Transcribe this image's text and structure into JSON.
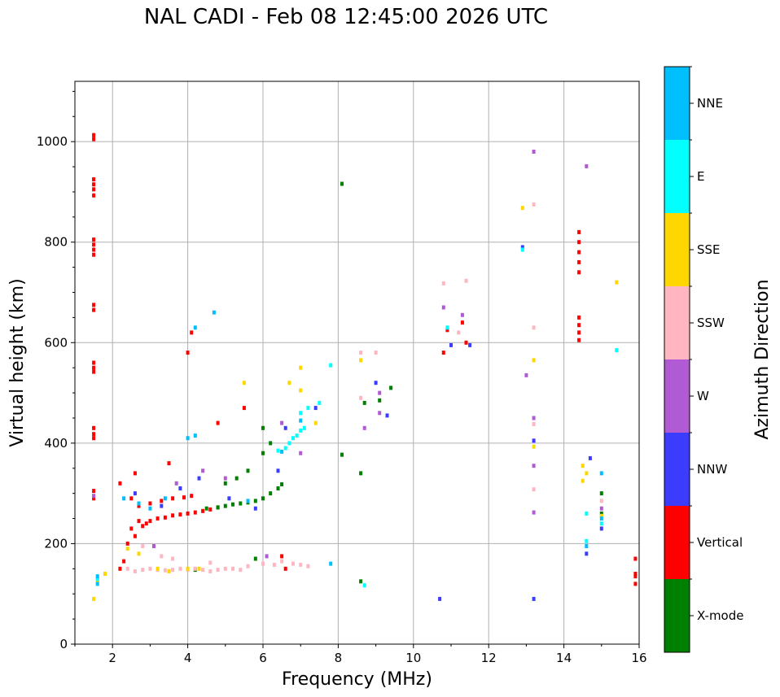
{
  "chart_data": {
    "type": "scatter",
    "title": "NAL CADI - Feb 08 12:45:00 2026 UTC",
    "xlabel": "Frequency (MHz)",
    "ylabel": "Virtual height (km)",
    "xlim": [
      1,
      16
    ],
    "ylim": [
      0,
      1120
    ],
    "x_ticks": [
      2,
      4,
      6,
      8,
      10,
      12,
      14,
      16
    ],
    "y_ticks": [
      0,
      200,
      400,
      600,
      800,
      1000
    ],
    "grid": true,
    "colorbar": {
      "label": "Azimuth Direction",
      "categories": [
        {
          "name": "X-mode",
          "color": "#008000"
        },
        {
          "name": "Vertical",
          "color": "#ff0000"
        },
        {
          "name": "NNW",
          "color": "#3c3cff"
        },
        {
          "name": "W",
          "color": "#b05ad4"
        },
        {
          "name": "SSW",
          "color": "#ffb6c1"
        },
        {
          "name": "SSE",
          "color": "#ffd700"
        },
        {
          "name": "E",
          "color": "#00ffff"
        },
        {
          "name": "NNE",
          "color": "#00bfff"
        }
      ]
    },
    "series": [
      {
        "name": "Vertical",
        "color": "#ff0000",
        "points": [
          [
            1.5,
            1013
          ],
          [
            1.5,
            1005
          ],
          [
            1.5,
            925
          ],
          [
            1.5,
            915
          ],
          [
            1.5,
            905
          ],
          [
            1.5,
            893
          ],
          [
            1.5,
            805
          ],
          [
            1.5,
            795
          ],
          [
            1.5,
            785
          ],
          [
            1.5,
            775
          ],
          [
            1.5,
            675
          ],
          [
            1.5,
            665
          ],
          [
            1.5,
            560
          ],
          [
            1.5,
            550
          ],
          [
            1.5,
            542
          ],
          [
            1.5,
            430
          ],
          [
            1.5,
            418
          ],
          [
            1.5,
            410
          ],
          [
            1.5,
            305
          ],
          [
            1.5,
            290
          ],
          [
            2.2,
            150
          ],
          [
            2.3,
            165
          ],
          [
            2.4,
            200
          ],
          [
            2.5,
            230
          ],
          [
            2.6,
            215
          ],
          [
            2.7,
            245
          ],
          [
            2.8,
            235
          ],
          [
            2.9,
            240
          ],
          [
            3.0,
            245
          ],
          [
            3.2,
            250
          ],
          [
            3.4,
            252
          ],
          [
            3.6,
            256
          ],
          [
            3.8,
            258
          ],
          [
            4.0,
            260
          ],
          [
            4.2,
            262
          ],
          [
            4.4,
            265
          ],
          [
            4.6,
            268
          ],
          [
            4.8,
            272
          ],
          [
            2.5,
            290
          ],
          [
            2.7,
            275
          ],
          [
            3.0,
            280
          ],
          [
            3.3,
            285
          ],
          [
            3.6,
            290
          ],
          [
            3.9,
            292
          ],
          [
            4.1,
            295
          ],
          [
            2.2,
            320
          ],
          [
            2.6,
            340
          ],
          [
            3.5,
            360
          ],
          [
            4.0,
            580
          ],
          [
            4.1,
            620
          ],
          [
            4.8,
            440
          ],
          [
            5.5,
            470
          ],
          [
            6.5,
            175
          ],
          [
            6.6,
            150
          ],
          [
            10.8,
            580
          ],
          [
            10.9,
            625
          ],
          [
            11.4,
            600
          ],
          [
            11.3,
            640
          ],
          [
            14.4,
            740
          ],
          [
            14.4,
            760
          ],
          [
            14.4,
            780
          ],
          [
            14.4,
            800
          ],
          [
            14.4,
            820
          ],
          [
            14.4,
            650
          ],
          [
            14.4,
            635
          ],
          [
            14.4,
            620
          ],
          [
            14.4,
            605
          ],
          [
            15.9,
            170
          ],
          [
            15.9,
            140
          ],
          [
            15.9,
            135
          ],
          [
            15.9,
            120
          ]
        ]
      },
      {
        "name": "X-mode",
        "color": "#008000",
        "points": [
          [
            4.5,
            270
          ],
          [
            4.8,
            272
          ],
          [
            5.0,
            275
          ],
          [
            5.2,
            278
          ],
          [
            5.4,
            280
          ],
          [
            5.6,
            282
          ],
          [
            5.8,
            285
          ],
          [
            6.0,
            290
          ],
          [
            6.2,
            300
          ],
          [
            6.4,
            310
          ],
          [
            6.5,
            318
          ],
          [
            5.0,
            320
          ],
          [
            5.3,
            330
          ],
          [
            5.6,
            345
          ],
          [
            6.0,
            380
          ],
          [
            6.2,
            400
          ],
          [
            6.0,
            430
          ],
          [
            4.2,
            148
          ],
          [
            5.8,
            170
          ],
          [
            8.1,
            916
          ],
          [
            8.1,
            377
          ],
          [
            8.6,
            340
          ],
          [
            8.6,
            125
          ],
          [
            8.7,
            480
          ],
          [
            9.1,
            485
          ],
          [
            9.4,
            510
          ],
          [
            15.0,
            300
          ],
          [
            15.0,
            260
          ]
        ]
      },
      {
        "name": "NNW",
        "color": "#3c3cff",
        "points": [
          [
            2.6,
            300
          ],
          [
            3.3,
            275
          ],
          [
            3.8,
            310
          ],
          [
            4.3,
            330
          ],
          [
            5.1,
            290
          ],
          [
            5.8,
            270
          ],
          [
            6.4,
            345
          ],
          [
            6.6,
            430
          ],
          [
            7.4,
            470
          ],
          [
            9.0,
            520
          ],
          [
            9.3,
            455
          ],
          [
            10.7,
            90
          ],
          [
            11.0,
            595
          ],
          [
            11.5,
            595
          ],
          [
            12.9,
            790
          ],
          [
            13.2,
            405
          ],
          [
            13.2,
            90
          ],
          [
            14.6,
            180
          ],
          [
            14.7,
            370
          ],
          [
            15.0,
            230
          ]
        ]
      },
      {
        "name": "W",
        "color": "#b05ad4",
        "points": [
          [
            1.5,
            295
          ],
          [
            3.1,
            195
          ],
          [
            3.7,
            320
          ],
          [
            4.4,
            345
          ],
          [
            5.0,
            330
          ],
          [
            6.1,
            175
          ],
          [
            6.5,
            440
          ],
          [
            7.0,
            380
          ],
          [
            8.7,
            430
          ],
          [
            9.1,
            460
          ],
          [
            9.1,
            500
          ],
          [
            10.8,
            670
          ],
          [
            11.3,
            655
          ],
          [
            13.0,
            535
          ],
          [
            13.2,
            980
          ],
          [
            13.2,
            450
          ],
          [
            13.2,
            355
          ],
          [
            13.2,
            262
          ],
          [
            14.6,
            951
          ],
          [
            15.0,
            270
          ]
        ]
      },
      {
        "name": "SSW",
        "color": "#ffb6c1",
        "points": [
          [
            2.4,
            150
          ],
          [
            2.6,
            145
          ],
          [
            2.8,
            148
          ],
          [
            3.0,
            150
          ],
          [
            3.2,
            148
          ],
          [
            3.4,
            147
          ],
          [
            3.6,
            148
          ],
          [
            3.8,
            150
          ],
          [
            4.0,
            148
          ],
          [
            4.2,
            150
          ],
          [
            4.4,
            148
          ],
          [
            4.6,
            145
          ],
          [
            4.8,
            148
          ],
          [
            5.0,
            150
          ],
          [
            5.2,
            150
          ],
          [
            5.4,
            148
          ],
          [
            5.6,
            155
          ],
          [
            6.0,
            160
          ],
          [
            6.3,
            158
          ],
          [
            6.5,
            165
          ],
          [
            6.8,
            160
          ],
          [
            7.0,
            158
          ],
          [
            7.2,
            155
          ],
          [
            3.3,
            175
          ],
          [
            3.6,
            170
          ],
          [
            4.6,
            162
          ],
          [
            2.8,
            195
          ],
          [
            8.6,
            580
          ],
          [
            8.6,
            490
          ],
          [
            9.0,
            580
          ],
          [
            10.8,
            718
          ],
          [
            11.4,
            723
          ],
          [
            11.2,
            620
          ],
          [
            13.2,
            630
          ],
          [
            13.2,
            875
          ],
          [
            13.2,
            438
          ],
          [
            13.2,
            308
          ],
          [
            15.0,
            285
          ]
        ]
      },
      {
        "name": "SSE",
        "color": "#ffd700",
        "points": [
          [
            1.5,
            90
          ],
          [
            1.6,
            125
          ],
          [
            1.8,
            140
          ],
          [
            2.4,
            190
          ],
          [
            2.7,
            180
          ],
          [
            3.2,
            150
          ],
          [
            3.5,
            145
          ],
          [
            4.0,
            150
          ],
          [
            4.3,
            150
          ],
          [
            5.5,
            520
          ],
          [
            6.7,
            520
          ],
          [
            7.0,
            505
          ],
          [
            7.0,
            550
          ],
          [
            7.4,
            440
          ],
          [
            8.6,
            565
          ],
          [
            12.9,
            868
          ],
          [
            13.2,
            565
          ],
          [
            13.2,
            393
          ],
          [
            14.5,
            355
          ],
          [
            14.6,
            340
          ],
          [
            14.5,
            325
          ],
          [
            15.4,
            720
          ],
          [
            15.0,
            255
          ]
        ]
      },
      {
        "name": "E",
        "color": "#00ffff",
        "points": [
          [
            1.6,
            130
          ],
          [
            6.4,
            385
          ],
          [
            6.6,
            390
          ],
          [
            6.7,
            400
          ],
          [
            6.8,
            410
          ],
          [
            6.9,
            415
          ],
          [
            7.0,
            425
          ],
          [
            7.1,
            430
          ],
          [
            7.0,
            460
          ],
          [
            7.2,
            470
          ],
          [
            7.5,
            480
          ],
          [
            7.8,
            555
          ],
          [
            8.7,
            117
          ],
          [
            10.9,
            630
          ],
          [
            12.9,
            785
          ],
          [
            14.6,
            260
          ],
          [
            14.6,
            205
          ],
          [
            15.0,
            240
          ],
          [
            15.4,
            585
          ]
        ]
      },
      {
        "name": "NNE",
        "color": "#00bfff",
        "points": [
          [
            1.6,
            135
          ],
          [
            1.6,
            120
          ],
          [
            2.3,
            290
          ],
          [
            2.7,
            280
          ],
          [
            3.0,
            270
          ],
          [
            3.4,
            290
          ],
          [
            4.0,
            410
          ],
          [
            4.2,
            415
          ],
          [
            4.2,
            630
          ],
          [
            4.7,
            660
          ],
          [
            5.6,
            285
          ],
          [
            6.5,
            383
          ],
          [
            7.0,
            445
          ],
          [
            7.8,
            160
          ],
          [
            14.6,
            195
          ],
          [
            15.0,
            250
          ],
          [
            15.0,
            340
          ]
        ]
      }
    ]
  }
}
